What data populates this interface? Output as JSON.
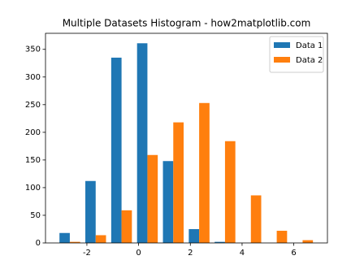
{
  "chart_data": {
    "type": "histogram",
    "title": "Multiple Datasets Histogram - how2matplotlib.com",
    "bins": [
      -3.16,
      -2.16,
      -1.16,
      -0.16,
      0.84,
      1.84,
      2.84,
      3.84,
      4.84,
      5.84,
      6.84
    ],
    "series": [
      {
        "name": "Data 1",
        "color": "#1f77b4",
        "values": [
          18,
          112,
          335,
          361,
          148,
          25,
          2,
          0,
          0,
          0
        ]
      },
      {
        "name": "Data 2",
        "color": "#ff7f0e",
        "values": [
          2,
          14,
          59,
          159,
          218,
          253,
          184,
          86,
          22,
          5
        ]
      }
    ],
    "xlim": [
      -3.6,
      7.3
    ],
    "xticks": [
      -2,
      0,
      2,
      4,
      6
    ],
    "ylim": [
      0,
      379
    ],
    "yticks": [
      0,
      50,
      100,
      150,
      200,
      250,
      300,
      350
    ],
    "legend": "upper right"
  }
}
